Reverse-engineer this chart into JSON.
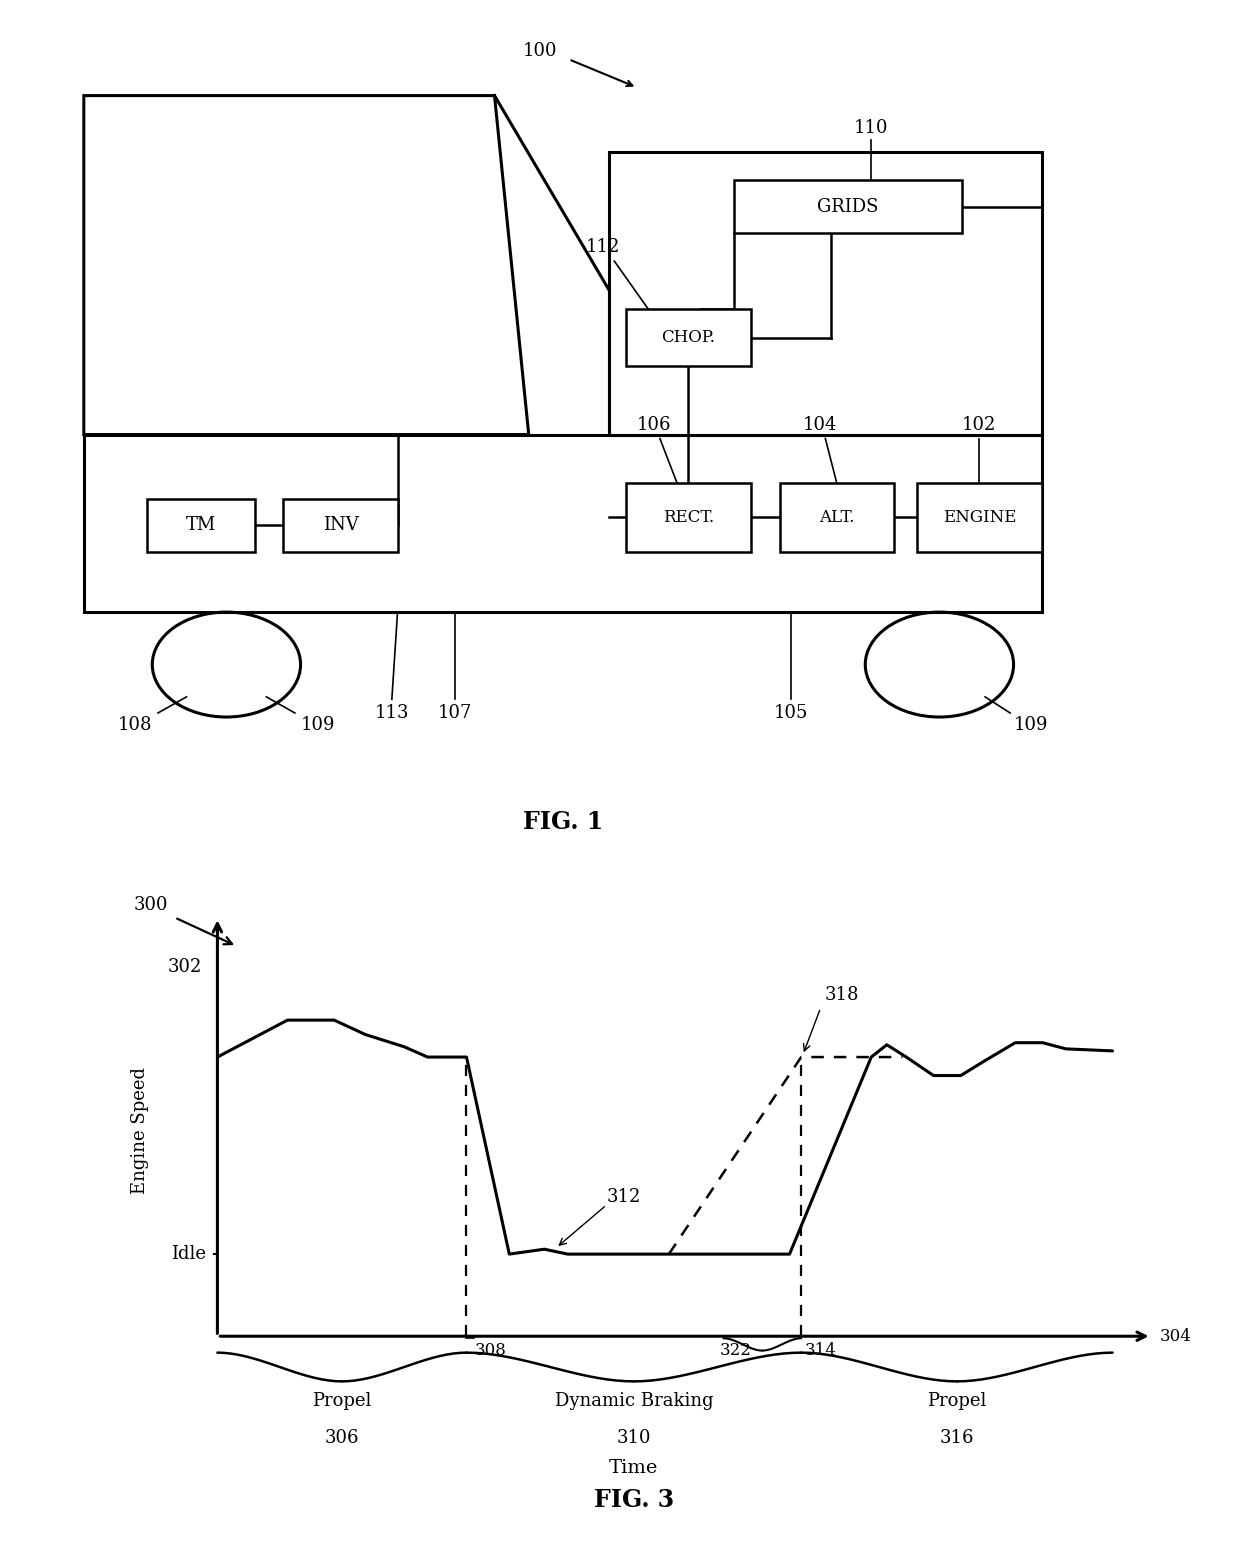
{
  "background_color": "#ffffff",
  "fig1": {
    "title": "FIG. 1",
    "label_100": "100",
    "label_102": "102",
    "label_104": "104",
    "label_105": "105",
    "label_106": "106",
    "label_107": "107",
    "label_108": "108",
    "label_109": "109",
    "label_110": "110",
    "label_112": "112",
    "label_113": "113",
    "label_tm": "TM",
    "label_inv": "INV",
    "label_rect": "RECT.",
    "label_alt": "ALT.",
    "label_engine": "ENGINE",
    "label_chop": "CHOP.",
    "label_grids": "GRIDS"
  },
  "fig3": {
    "title": "FIG. 3",
    "ylabel": "Engine Speed",
    "xlabel": "Time",
    "label_idle": "Idle",
    "label_302": "302",
    "label_300": "300",
    "label_304": "304",
    "label_306": "306",
    "label_308": "308",
    "label_310": "310",
    "label_312": "312",
    "label_314": "314",
    "label_316": "316",
    "label_318": "318",
    "label_322": "322",
    "text_propel1": "Propel",
    "text_braking": "Dynamic Braking",
    "text_propel2": "Propel"
  }
}
